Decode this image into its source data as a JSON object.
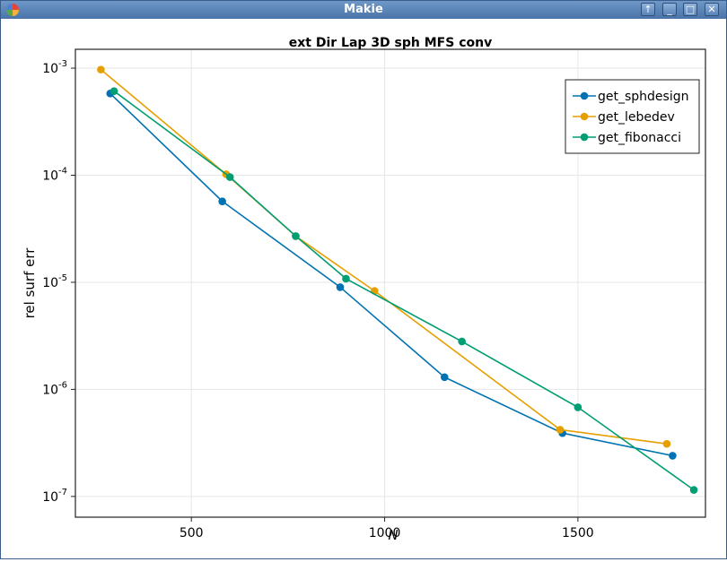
{
  "window": {
    "title": "Makie",
    "buttons": {
      "up": "↑",
      "minimize": "_",
      "maximize": "□",
      "close": "✕"
    }
  },
  "chart_data": {
    "type": "line",
    "title": "ext Dir Lap 3D sph MFS conv",
    "xlabel": "N",
    "ylabel": "rel surf err",
    "yscale": "log10",
    "xlim": [
      200,
      1830
    ],
    "ylim": [
      6.4e-08,
      0.0015
    ],
    "xticks": [
      500,
      1000,
      1500
    ],
    "xtick_labels": [
      "500",
      "1000",
      "1500"
    ],
    "yticks": [
      1e-07,
      1e-06,
      1e-05,
      0.0001,
      0.001
    ],
    "ytick_labels": [
      {
        "base": "10",
        "exp": "-7"
      },
      {
        "base": "10",
        "exp": "-6"
      },
      {
        "base": "10",
        "exp": "-5"
      },
      {
        "base": "10",
        "exp": "-4"
      },
      {
        "base": "10",
        "exp": "-3"
      }
    ],
    "grid": true,
    "legend_position": "top-right",
    "series": [
      {
        "name": "get_sphdesign",
        "color": "#0072b2",
        "x": [
          290,
          580,
          885,
          1155,
          1460,
          1745
        ],
        "y": [
          0.00058,
          5.7e-05,
          9e-06,
          1.3e-06,
          3.9e-07,
          2.4e-07
        ]
      },
      {
        "name": "get_lebedev",
        "color": "#e69f00",
        "x": [
          266,
          590,
          770,
          974,
          1454,
          1730
        ],
        "y": [
          0.00097,
          0.000102,
          2.7e-05,
          8.3e-06,
          4.2e-07,
          3.1e-07
        ]
      },
      {
        "name": "get_fibonacci",
        "color": "#009e73",
        "x": [
          300,
          600,
          770,
          900,
          1200,
          1500,
          1800
        ],
        "y": [
          0.00061,
          9.6e-05,
          2.7e-05,
          1.08e-05,
          2.8e-06,
          6.8e-07,
          1.15e-07
        ]
      }
    ]
  }
}
